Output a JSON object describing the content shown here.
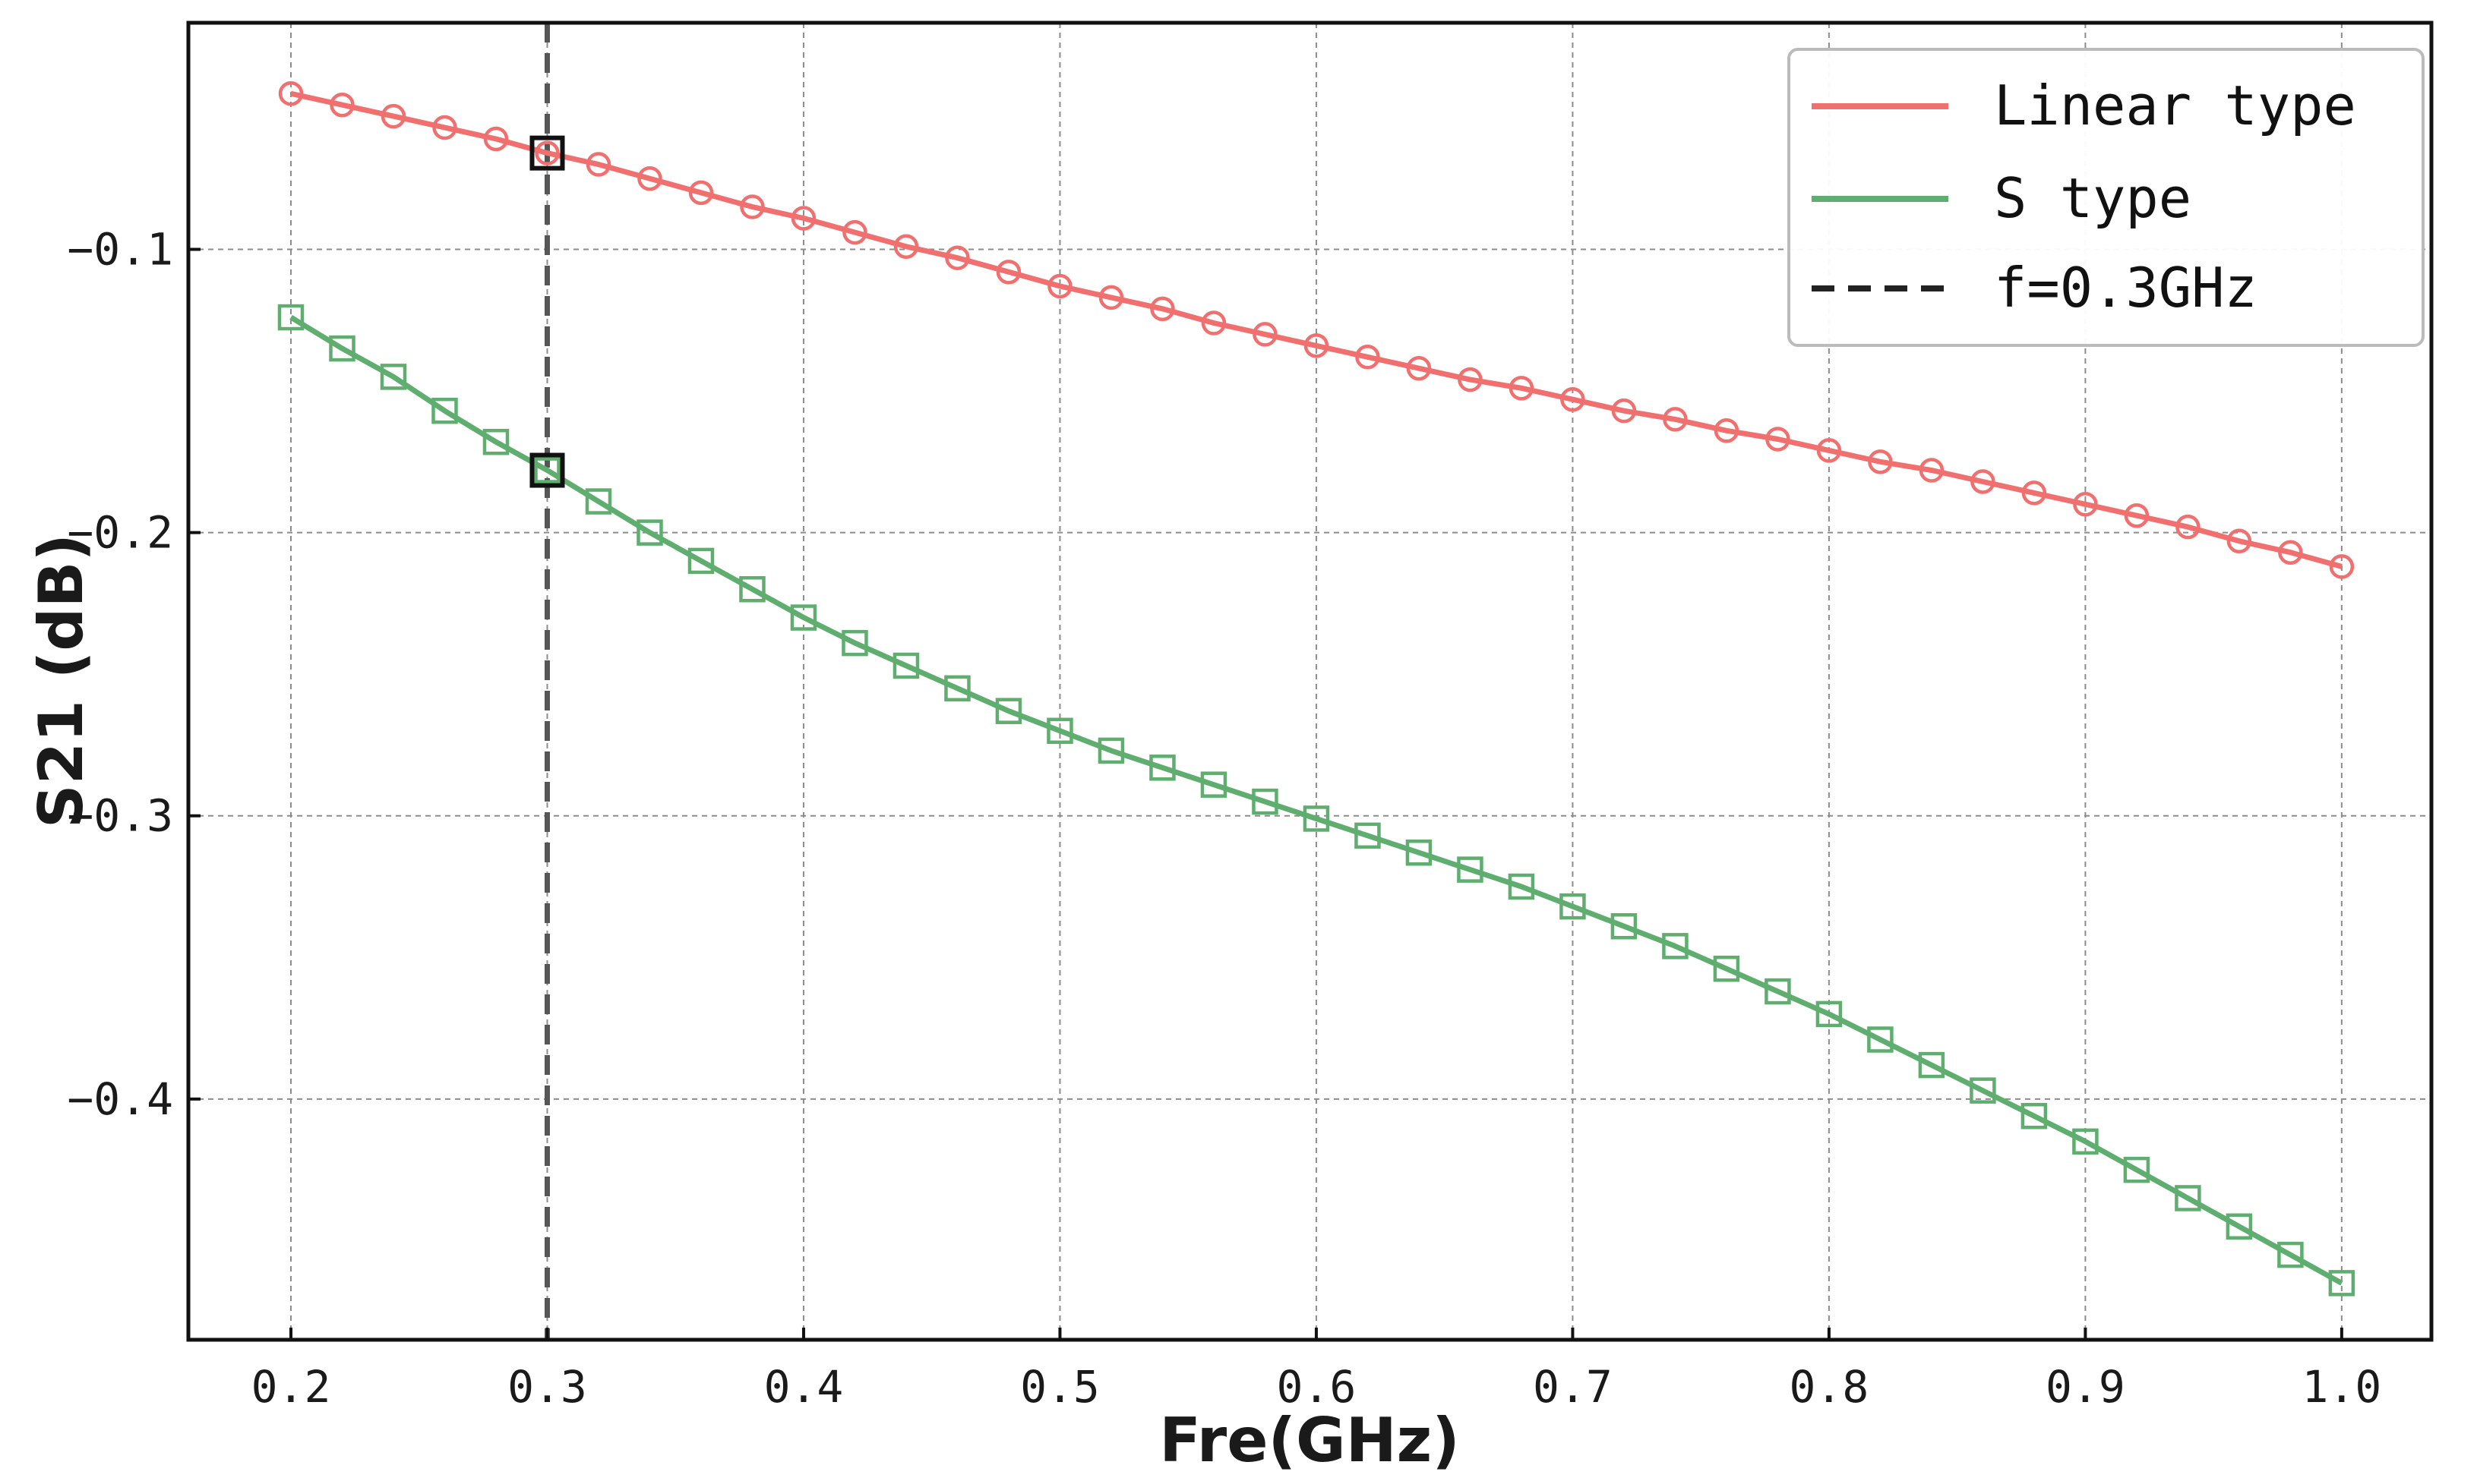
{
  "chart_data": {
    "type": "line",
    "xlabel": "Fre(GHz)",
    "ylabel": "S21 (dB)",
    "xlim": [
      0.16,
      1.035
    ],
    "ylim": [
      -0.485,
      -0.02
    ],
    "x_ticks": [
      0.2,
      0.3,
      0.4,
      0.5,
      0.6,
      0.7,
      0.8,
      0.9,
      1.0
    ],
    "x_tick_labels": [
      "0.2",
      "0.3",
      "0.4",
      "0.5",
      "0.6",
      "0.7",
      "0.8",
      "0.9",
      "1.0"
    ],
    "y_ticks": [
      -0.1,
      -0.2,
      -0.3,
      -0.4
    ],
    "y_tick_labels": [
      "-0.1",
      "-0.2",
      "-0.3",
      "-0.4"
    ],
    "grid": true,
    "legend_position": "top-right",
    "x": [
      0.2,
      0.22,
      0.24,
      0.26,
      0.28,
      0.3,
      0.32,
      0.34,
      0.36,
      0.38,
      0.4,
      0.42,
      0.44,
      0.46,
      0.48,
      0.5,
      0.52,
      0.54,
      0.56,
      0.58,
      0.6,
      0.62,
      0.64,
      0.66,
      0.68,
      0.7,
      0.72,
      0.74,
      0.76,
      0.78,
      0.8,
      0.82,
      0.84,
      0.86,
      0.88,
      0.9,
      0.92,
      0.94,
      0.96,
      0.98,
      1.0
    ],
    "series": [
      {
        "name": "Linear type",
        "color": "#f07070",
        "marker": "circle",
        "values": [
          -0.045,
          -0.049,
          -0.053,
          -0.057,
          -0.061,
          -0.066,
          -0.07,
          -0.075,
          -0.08,
          -0.085,
          -0.089,
          -0.094,
          -0.099,
          -0.103,
          -0.108,
          -0.113,
          -0.117,
          -0.121,
          -0.126,
          -0.13,
          -0.134,
          -0.138,
          -0.142,
          -0.146,
          -0.149,
          -0.153,
          -0.157,
          -0.16,
          -0.164,
          -0.167,
          -0.171,
          -0.175,
          -0.178,
          -0.182,
          -0.186,
          -0.19,
          -0.194,
          -0.198,
          -0.203,
          -0.207,
          -0.212
        ]
      },
      {
        "name": "S type",
        "color": "#5fae70",
        "marker": "square",
        "values": [
          -0.124,
          -0.135,
          -0.145,
          -0.157,
          -0.168,
          -0.178,
          -0.189,
          -0.2,
          -0.21,
          -0.22,
          -0.23,
          -0.239,
          -0.247,
          -0.255,
          -0.263,
          -0.27,
          -0.277,
          -0.283,
          -0.289,
          -0.295,
          -0.301,
          -0.307,
          -0.313,
          -0.319,
          -0.325,
          -0.332,
          -0.339,
          -0.346,
          -0.354,
          -0.362,
          -0.37,
          -0.379,
          -0.388,
          -0.397,
          -0.406,
          -0.415,
          -0.425,
          -0.435,
          -0.445,
          -0.455,
          -0.465
        ]
      }
    ],
    "reference_line": {
      "name": "f=0.3GHz",
      "x": 0.3,
      "color": "#555555",
      "style": "dashed"
    },
    "highlighted_points": [
      {
        "x": 0.3,
        "y": -0.066
      },
      {
        "x": 0.3,
        "y": -0.178
      }
    ],
    "legend_line_colors": {
      "reference": "#222222"
    }
  }
}
